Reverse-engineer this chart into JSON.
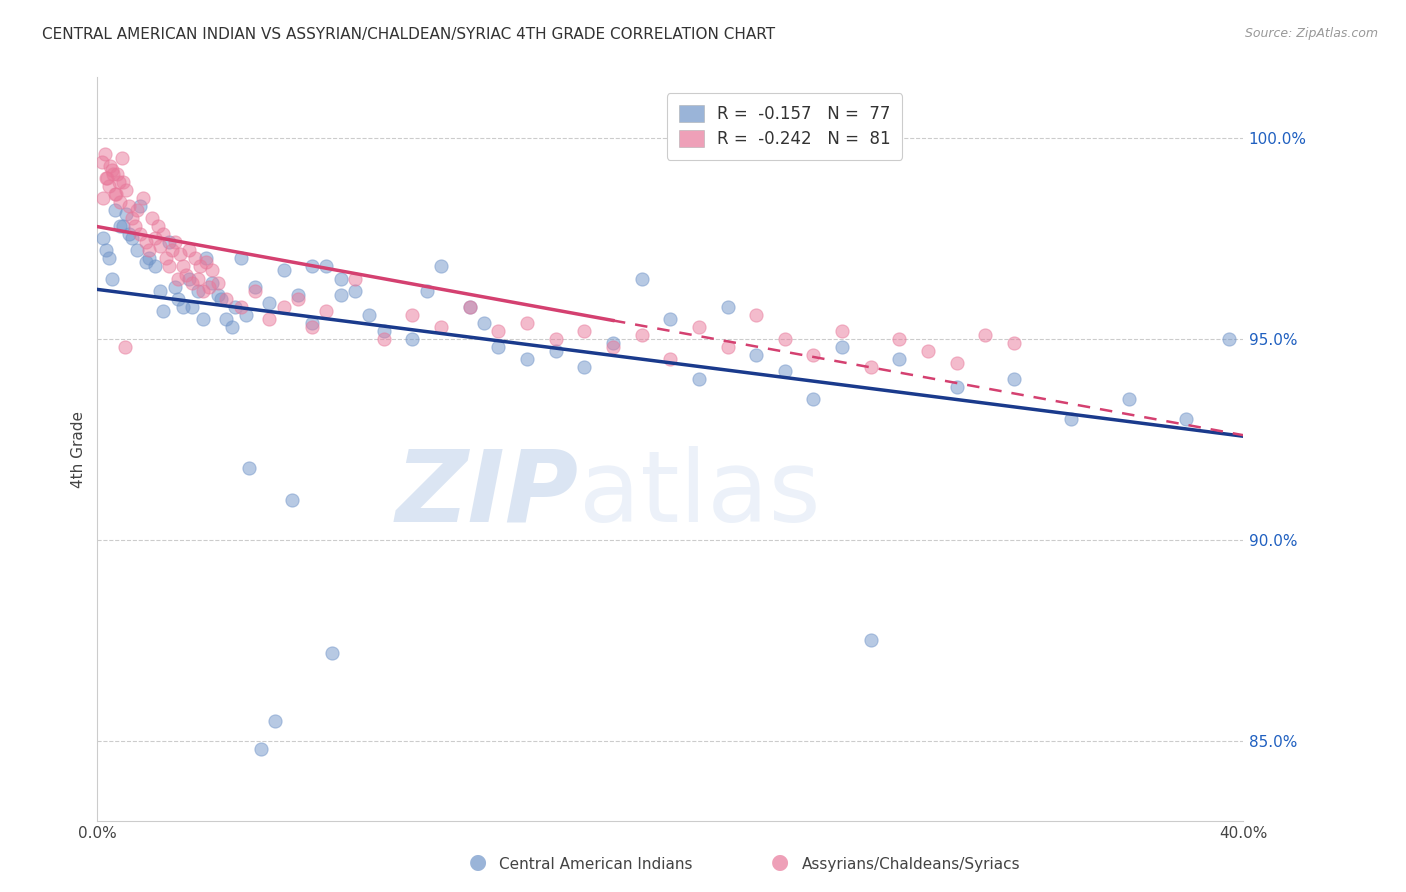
{
  "title": "CENTRAL AMERICAN INDIAN VS ASSYRIAN/CHALDEAN/SYRIAC 4TH GRADE CORRELATION CHART",
  "source": "Source: ZipAtlas.com",
  "ylabel": "4th Grade",
  "xmin": 0.0,
  "xmax": 40.0,
  "ymin": 83.0,
  "ymax": 101.5,
  "yticks": [
    85.0,
    90.0,
    95.0,
    100.0
  ],
  "xticks": [
    0.0,
    10.0,
    20.0,
    30.0,
    40.0
  ],
  "xtick_labels": [
    "0.0%",
    "",
    "",
    "",
    "40.0%"
  ],
  "ytick_labels": [
    "85.0%",
    "90.0%",
    "95.0%",
    "100.0%"
  ],
  "blue_R": -0.157,
  "blue_N": 77,
  "pink_R": -0.242,
  "pink_N": 81,
  "blue_color": "#7094c8",
  "pink_color": "#e8789a",
  "blue_line_color": "#1a3a8c",
  "pink_line_color": "#d44070",
  "legend_label_blue": "Central American Indians",
  "legend_label_pink": "Assyrians/Chaldeans/Syriacs",
  "watermark_zip": "ZIP",
  "watermark_atlas": "atlas",
  "blue_scatter_x": [
    0.3,
    0.5,
    0.8,
    1.0,
    1.2,
    1.5,
    1.8,
    2.0,
    2.2,
    2.5,
    2.8,
    3.0,
    3.2,
    3.5,
    3.8,
    4.0,
    4.2,
    4.5,
    4.8,
    5.0,
    5.5,
    6.0,
    6.5,
    7.0,
    7.5,
    8.0,
    8.5,
    9.0,
    10.0,
    11.0,
    12.0,
    13.0,
    14.0,
    15.0,
    16.0,
    17.0,
    18.0,
    19.0,
    20.0,
    21.0,
    22.0,
    23.0,
    24.0,
    25.0,
    26.0,
    27.0,
    28.0,
    30.0,
    32.0,
    34.0,
    36.0,
    38.0,
    39.5,
    0.2,
    0.4,
    0.6,
    0.9,
    1.1,
    1.4,
    1.7,
    2.3,
    2.7,
    3.3,
    3.7,
    4.3,
    4.7,
    5.2,
    5.7,
    6.2,
    7.5,
    8.5,
    9.5,
    11.5,
    13.5,
    5.3,
    6.8,
    8.2
  ],
  "blue_scatter_y": [
    97.2,
    96.5,
    97.8,
    98.1,
    97.5,
    98.3,
    97.0,
    96.8,
    96.2,
    97.4,
    96.0,
    95.8,
    96.5,
    96.2,
    97.0,
    96.4,
    96.1,
    95.5,
    95.8,
    97.0,
    96.3,
    95.9,
    96.7,
    96.1,
    95.4,
    96.8,
    96.5,
    96.2,
    95.2,
    95.0,
    96.8,
    95.8,
    94.8,
    94.5,
    94.7,
    94.3,
    94.9,
    96.5,
    95.5,
    94.0,
    95.8,
    94.6,
    94.2,
    93.5,
    94.8,
    87.5,
    94.5,
    93.8,
    94.0,
    93.0,
    93.5,
    93.0,
    95.0,
    97.5,
    97.0,
    98.2,
    97.8,
    97.6,
    97.2,
    96.9,
    95.7,
    96.3,
    95.8,
    95.5,
    96.0,
    95.3,
    95.6,
    84.8,
    85.5,
    96.8,
    96.1,
    95.6,
    96.2,
    95.4,
    91.8,
    91.0,
    87.2
  ],
  "pink_scatter_x": [
    0.2,
    0.3,
    0.4,
    0.5,
    0.6,
    0.7,
    0.8,
    0.9,
    1.0,
    1.1,
    1.2,
    1.3,
    1.4,
    1.5,
    1.6,
    1.7,
    1.8,
    1.9,
    2.0,
    2.1,
    2.2,
    2.3,
    2.4,
    2.5,
    2.6,
    2.7,
    2.8,
    2.9,
    3.0,
    3.1,
    3.2,
    3.3,
    3.4,
    3.5,
    3.6,
    3.7,
    3.8,
    3.9,
    4.0,
    4.2,
    4.5,
    5.0,
    5.5,
    6.0,
    6.5,
    7.0,
    7.5,
    8.0,
    9.0,
    10.0,
    11.0,
    12.0,
    13.0,
    14.0,
    15.0,
    16.0,
    17.0,
    18.0,
    19.0,
    20.0,
    21.0,
    22.0,
    23.0,
    24.0,
    25.0,
    26.0,
    27.0,
    28.0,
    29.0,
    30.0,
    31.0,
    32.0,
    0.15,
    0.25,
    0.35,
    0.45,
    0.55,
    0.65,
    0.75,
    0.85,
    0.95
  ],
  "pink_scatter_y": [
    98.5,
    99.0,
    98.8,
    99.2,
    98.6,
    99.1,
    98.4,
    98.9,
    98.7,
    98.3,
    98.0,
    97.8,
    98.2,
    97.6,
    98.5,
    97.4,
    97.2,
    98.0,
    97.5,
    97.8,
    97.3,
    97.6,
    97.0,
    96.8,
    97.2,
    97.4,
    96.5,
    97.1,
    96.8,
    96.6,
    97.2,
    96.4,
    97.0,
    96.5,
    96.8,
    96.2,
    96.9,
    96.3,
    96.7,
    96.4,
    96.0,
    95.8,
    96.2,
    95.5,
    95.8,
    96.0,
    95.3,
    95.7,
    96.5,
    95.0,
    95.6,
    95.3,
    95.8,
    95.2,
    95.4,
    95.0,
    95.2,
    94.8,
    95.1,
    94.5,
    95.3,
    94.8,
    95.6,
    95.0,
    94.6,
    95.2,
    94.3,
    95.0,
    94.7,
    94.4,
    95.1,
    94.9,
    99.4,
    99.6,
    99.0,
    99.3,
    99.1,
    98.6,
    98.9,
    99.5,
    94.8
  ],
  "pink_solid_end_x": 18.0,
  "blue_line_x0": 0.0,
  "blue_line_x1": 40.0,
  "blue_line_y0": 96.8,
  "blue_line_y1": 94.8,
  "pink_line_x0": 0.0,
  "pink_line_x1": 18.0,
  "pink_line_y0": 98.5,
  "pink_line_y1": 97.0,
  "pink_dash_x0": 18.0,
  "pink_dash_x1": 40.0,
  "pink_dash_y0": 97.0,
  "pink_dash_y1": 95.3
}
